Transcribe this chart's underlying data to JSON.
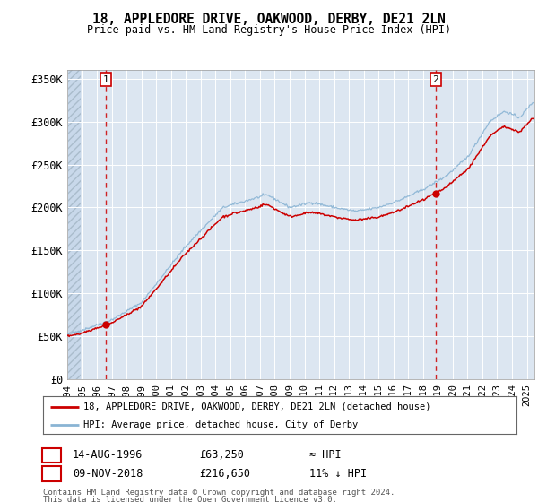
{
  "title": "18, APPLEDORE DRIVE, OAKWOOD, DERBY, DE21 2LN",
  "subtitle": "Price paid vs. HM Land Registry's House Price Index (HPI)",
  "ylim": [
    0,
    360000
  ],
  "yticks": [
    0,
    50000,
    100000,
    150000,
    200000,
    250000,
    300000,
    350000
  ],
  "ytick_labels": [
    "£0",
    "£50K",
    "£100K",
    "£150K",
    "£200K",
    "£250K",
    "£300K",
    "£350K"
  ],
  "background_color": "#dce6f1",
  "grid_color": "#ffffff",
  "hpi_line_color": "#8ab4d4",
  "price_line_color": "#cc0000",
  "marker_color": "#cc0000",
  "annotation_box_color": "#cc0000",
  "dashed_line_color": "#cc0000",
  "sale1_year": 1996.62,
  "sale1_price": 63250,
  "sale1_label": "1",
  "sale1_date": "14-AUG-1996",
  "sale1_price_str": "£63,250",
  "sale1_hpi_str": "≈ HPI",
  "sale2_year": 2018.85,
  "sale2_price": 216650,
  "sale2_label": "2",
  "sale2_date": "09-NOV-2018",
  "sale2_price_str": "£216,650",
  "sale2_hpi_str": "11% ↓ HPI",
  "legend_label1": "18, APPLEDORE DRIVE, OAKWOOD, DERBY, DE21 2LN (detached house)",
  "legend_label2": "HPI: Average price, detached house, City of Derby",
  "footnote1": "Contains HM Land Registry data © Crown copyright and database right 2024.",
  "footnote2": "This data is licensed under the Open Government Licence v3.0.",
  "xstart": 1994.0,
  "xend": 2025.5
}
